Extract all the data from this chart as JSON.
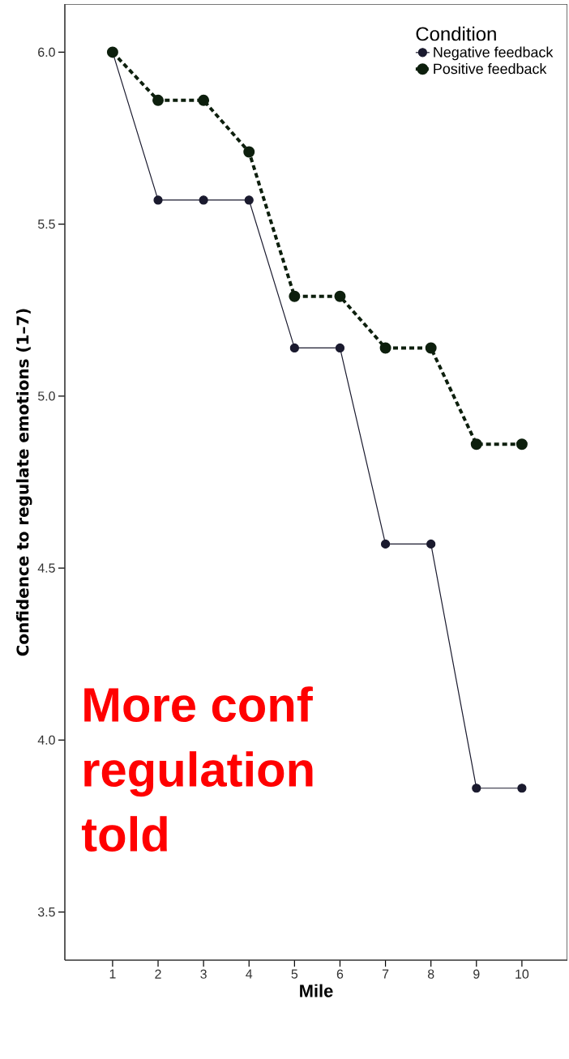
{
  "chart_data": {
    "type": "line",
    "xlabel": "Mile",
    "ylabel": "Confidence to regulate emotions (1–7)",
    "legend_title": "Condition",
    "x": [
      1,
      2,
      3,
      4,
      5,
      6,
      7,
      8,
      9,
      10
    ],
    "series": [
      {
        "name": "Negative feedback",
        "color": "#1a1a2e",
        "line_style": "solid",
        "values": [
          6.0,
          5.57,
          5.57,
          5.57,
          5.14,
          5.14,
          4.57,
          4.57,
          3.86,
          3.86
        ]
      },
      {
        "name": "Positive feedback",
        "color": "#0d1f0d",
        "line_style": "dashed",
        "values": [
          6.0,
          5.86,
          5.86,
          5.71,
          5.29,
          5.29,
          5.14,
          5.14,
          4.86,
          4.86
        ]
      }
    ],
    "xlim": [
      -0.05,
      11.0
    ],
    "ylim": [
      3.36,
      6.14
    ],
    "xticks": [
      1,
      2,
      3,
      4,
      5,
      6,
      7,
      8,
      9,
      10
    ],
    "yticks": [
      {
        "value": 3.5,
        "label": "3.5"
      },
      {
        "value": 4.0,
        "label": "4.0"
      },
      {
        "value": 4.5,
        "label": "4.5"
      },
      {
        "value": 5.0,
        "label": "5.0"
      },
      {
        "value": 5.5,
        "label": "5.5"
      },
      {
        "value": 6.0,
        "label": "6.0"
      }
    ],
    "marker": "circle",
    "legend": "top right",
    "grid": false,
    "annotations": [
      "More conf",
      "regulation",
      "told"
    ]
  }
}
